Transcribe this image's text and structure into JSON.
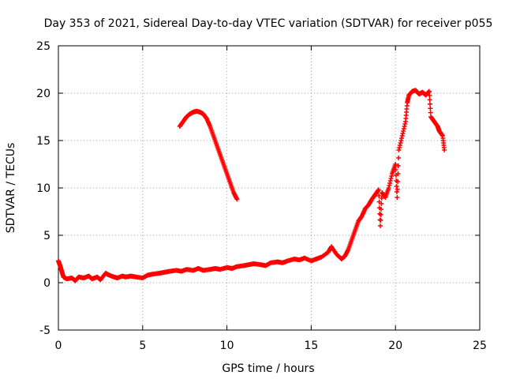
{
  "chart_data": {
    "type": "scatter",
    "title": "Day 353 of 2021, Sidereal Day-to-day VTEC variation (SDTVAR) for receiver p055",
    "xlabel": "GPS time / hours",
    "ylabel": "SDTVAR / TECUs",
    "xlim": [
      0,
      25
    ],
    "ylim": [
      -5,
      25
    ],
    "xticks": [
      0,
      5,
      10,
      15,
      20,
      25
    ],
    "yticks": [
      -5,
      0,
      5,
      10,
      15,
      20,
      25
    ],
    "grid": true,
    "marker": "+",
    "series_color": "#ff0000",
    "series": [
      {
        "name": "main",
        "points": [
          [
            0.0,
            2.3
          ],
          [
            0.1,
            1.8
          ],
          [
            0.2,
            1.2
          ],
          [
            0.3,
            0.6
          ],
          [
            0.5,
            0.4
          ],
          [
            0.8,
            0.5
          ],
          [
            1.0,
            0.2
          ],
          [
            1.2,
            0.6
          ],
          [
            1.5,
            0.5
          ],
          [
            1.8,
            0.7
          ],
          [
            2.0,
            0.4
          ],
          [
            2.3,
            0.6
          ],
          [
            2.5,
            0.3
          ],
          [
            2.8,
            1.0
          ],
          [
            3.0,
            0.8
          ],
          [
            3.3,
            0.6
          ],
          [
            3.5,
            0.5
          ],
          [
            3.8,
            0.7
          ],
          [
            4.0,
            0.6
          ],
          [
            4.3,
            0.7
          ],
          [
            4.6,
            0.6
          ],
          [
            5.0,
            0.5
          ],
          [
            5.3,
            0.8
          ],
          [
            5.6,
            0.9
          ],
          [
            6.0,
            1.0
          ],
          [
            6.3,
            1.1
          ],
          [
            6.6,
            1.2
          ],
          [
            7.0,
            1.3
          ],
          [
            7.3,
            1.2
          ],
          [
            7.6,
            1.4
          ],
          [
            8.0,
            1.3
          ],
          [
            8.3,
            1.5
          ],
          [
            8.6,
            1.3
          ],
          [
            9.0,
            1.4
          ],
          [
            9.3,
            1.5
          ],
          [
            9.6,
            1.4
          ],
          [
            10.0,
            1.6
          ],
          [
            10.3,
            1.5
          ],
          [
            10.6,
            1.7
          ],
          [
            11.0,
            1.8
          ],
          [
            11.3,
            1.9
          ],
          [
            11.6,
            2.0
          ],
          [
            12.0,
            1.9
          ],
          [
            12.3,
            1.8
          ],
          [
            12.6,
            2.1
          ],
          [
            13.0,
            2.2
          ],
          [
            13.3,
            2.1
          ],
          [
            13.6,
            2.3
          ],
          [
            14.0,
            2.5
          ],
          [
            14.3,
            2.4
          ],
          [
            14.6,
            2.6
          ],
          [
            15.0,
            2.3
          ],
          [
            15.3,
            2.5
          ],
          [
            15.6,
            2.7
          ],
          [
            16.0,
            3.2
          ],
          [
            16.2,
            3.8
          ],
          [
            16.5,
            3.0
          ],
          [
            16.8,
            2.5
          ],
          [
            17.0,
            2.8
          ],
          [
            17.2,
            3.5
          ],
          [
            17.4,
            4.5
          ],
          [
            17.6,
            5.5
          ],
          [
            17.8,
            6.5
          ],
          [
            18.0,
            7.0
          ],
          [
            18.2,
            7.8
          ],
          [
            18.4,
            8.2
          ],
          [
            18.6,
            8.8
          ],
          [
            18.8,
            9.3
          ],
          [
            19.0,
            9.8
          ],
          [
            19.1,
            6.0
          ],
          [
            19.2,
            9.5
          ],
          [
            19.4,
            9.0
          ],
          [
            19.6,
            10.0
          ],
          [
            19.8,
            11.5
          ],
          [
            20.0,
            12.5
          ],
          [
            20.1,
            9.0
          ],
          [
            20.2,
            14.0
          ],
          [
            20.4,
            15.5
          ],
          [
            20.6,
            17.0
          ],
          [
            20.7,
            19.0
          ],
          [
            20.8,
            19.8
          ],
          [
            21.0,
            20.2
          ],
          [
            21.2,
            20.3
          ],
          [
            21.4,
            19.9
          ],
          [
            21.6,
            20.1
          ],
          [
            21.8,
            19.8
          ],
          [
            22.0,
            20.2
          ],
          [
            22.1,
            17.5
          ],
          [
            22.3,
            17.0
          ],
          [
            22.5,
            16.5
          ],
          [
            22.6,
            16.0
          ],
          [
            22.8,
            15.5
          ],
          [
            22.9,
            14.0
          ]
        ]
      },
      {
        "name": "arc",
        "points": [
          [
            7.2,
            16.5
          ],
          [
            7.4,
            17.0
          ],
          [
            7.6,
            17.5
          ],
          [
            7.8,
            17.8
          ],
          [
            8.0,
            18.0
          ],
          [
            8.2,
            18.1
          ],
          [
            8.4,
            18.0
          ],
          [
            8.6,
            17.8
          ],
          [
            8.8,
            17.3
          ],
          [
            9.0,
            16.5
          ],
          [
            9.2,
            15.5
          ],
          [
            9.4,
            14.5
          ],
          [
            9.6,
            13.5
          ],
          [
            9.8,
            12.5
          ],
          [
            10.0,
            11.5
          ],
          [
            10.2,
            10.5
          ],
          [
            10.4,
            9.5
          ],
          [
            10.6,
            8.8
          ]
        ]
      }
    ]
  }
}
